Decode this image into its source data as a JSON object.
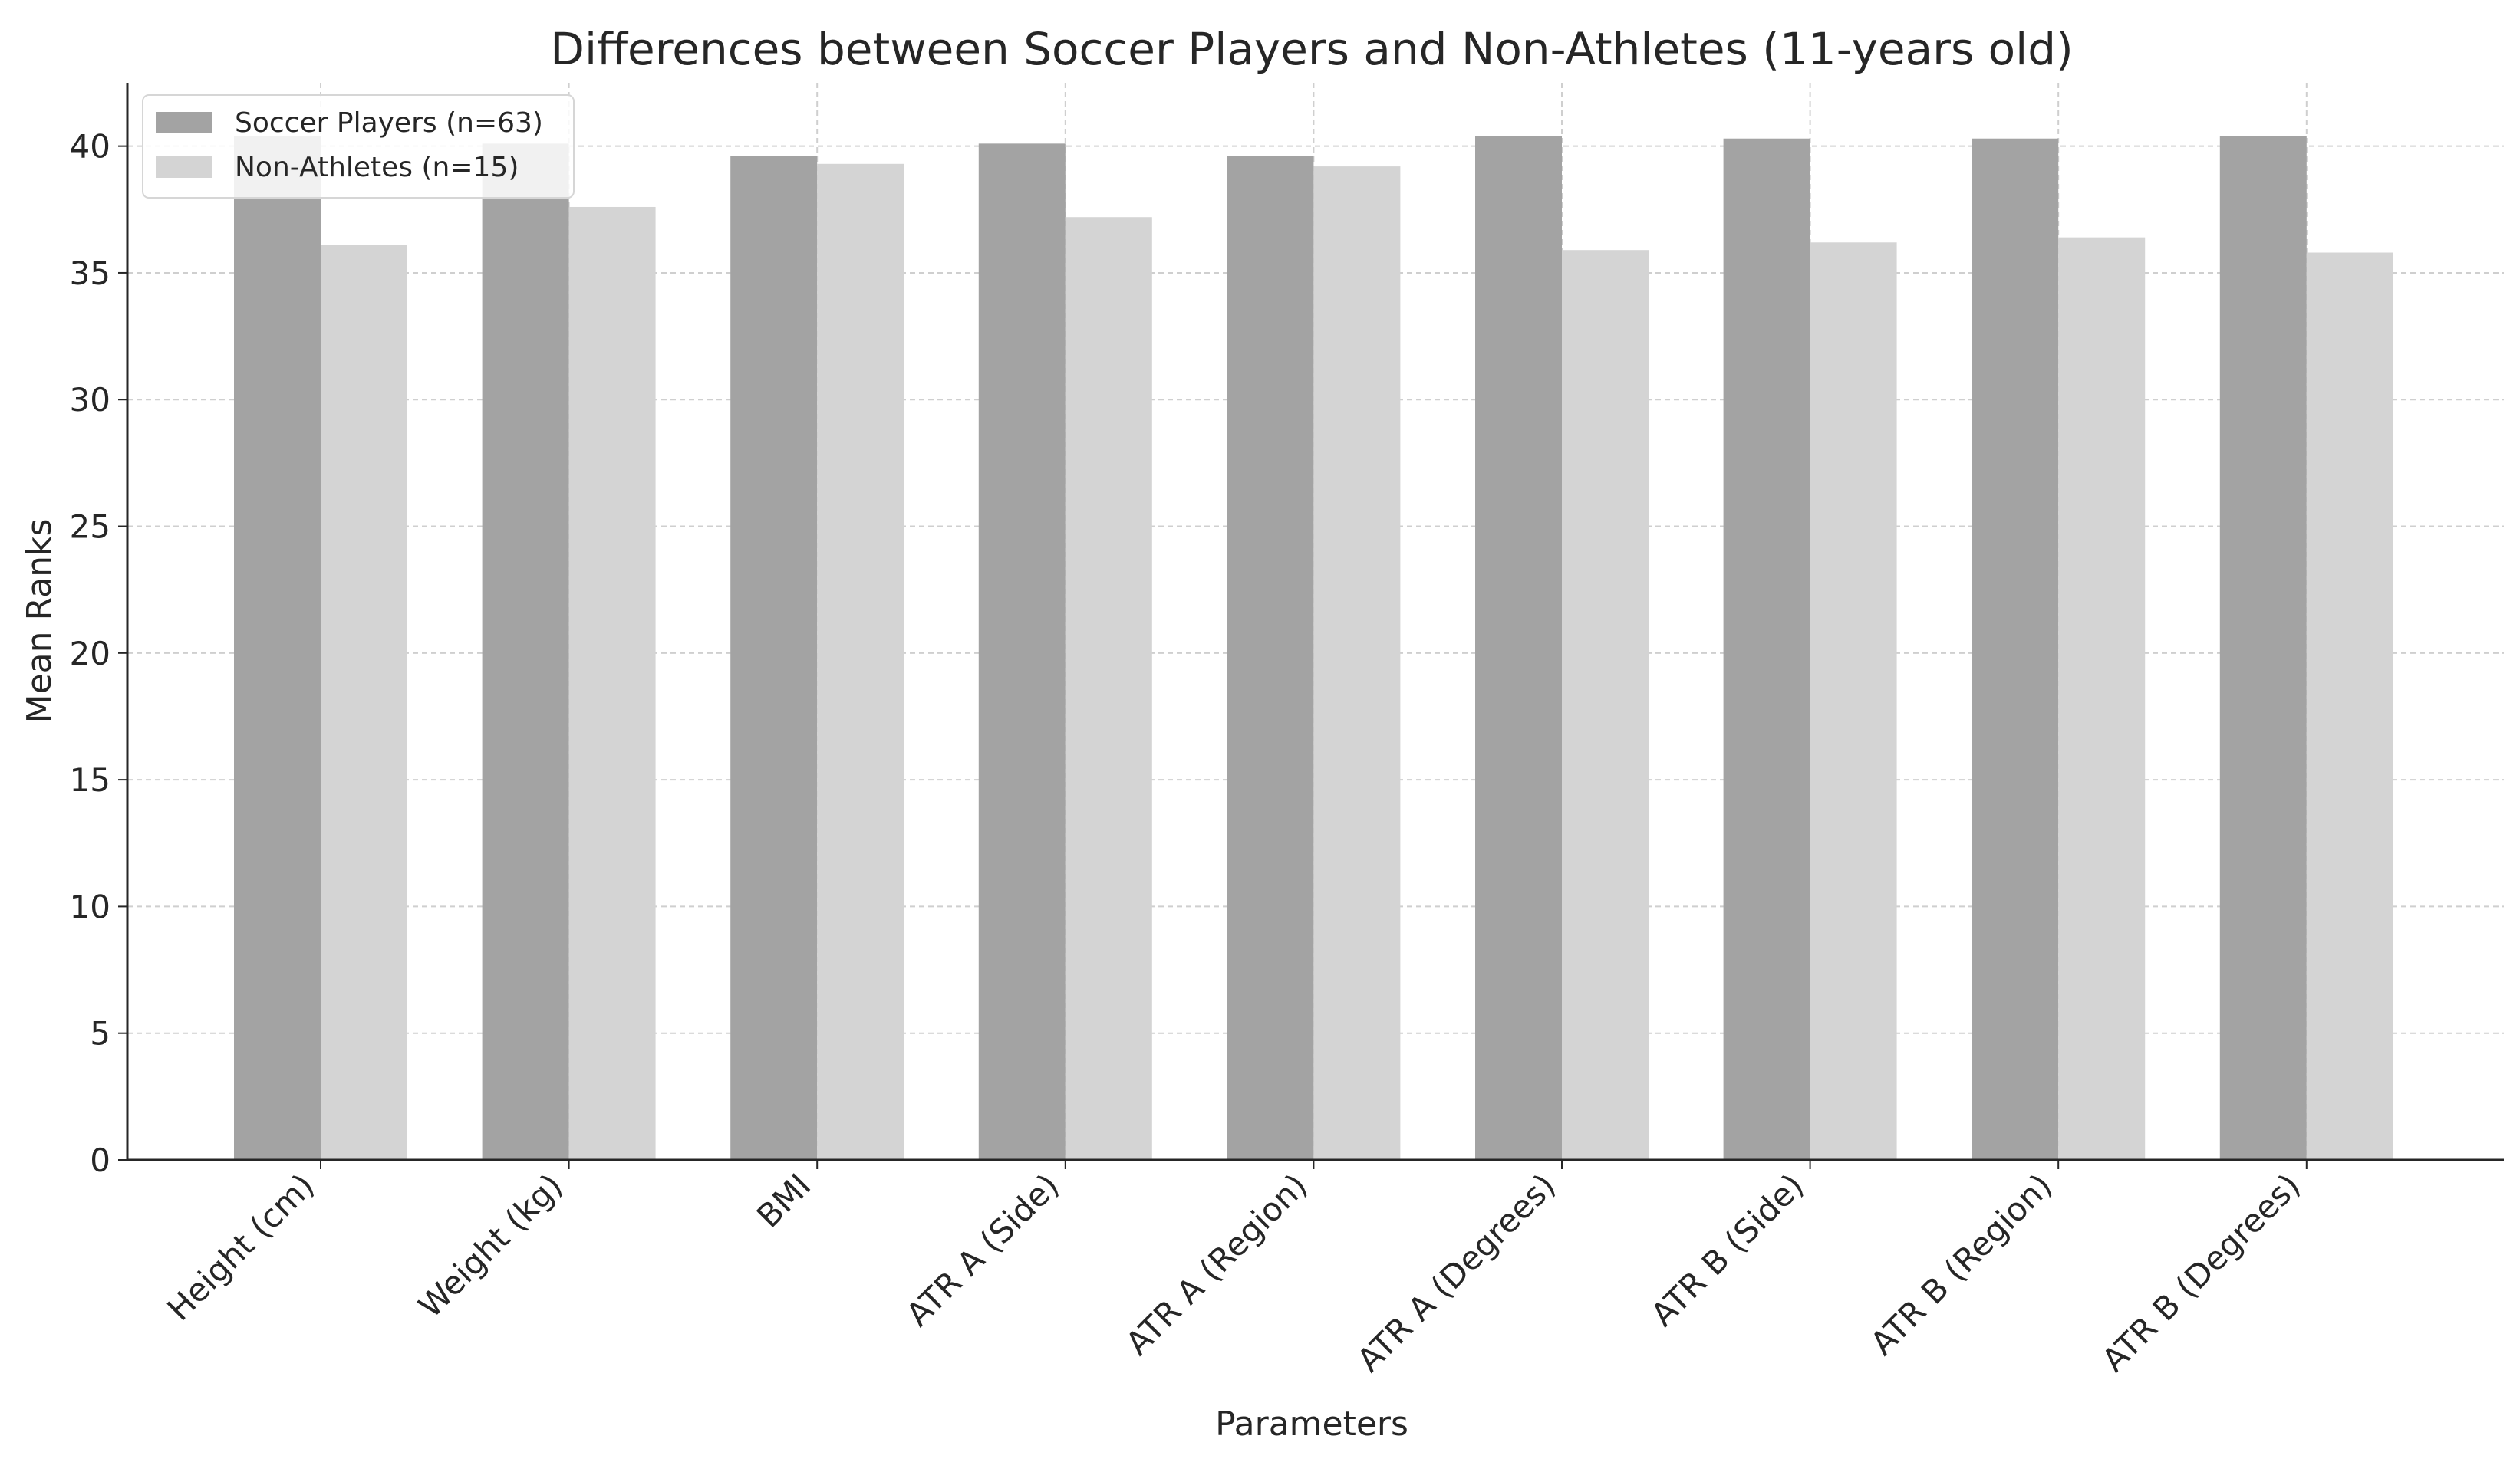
{
  "chart_data": {
    "type": "bar",
    "title": "Differences between Soccer Players and Non-Athletes (11-years old)",
    "xlabel": "Parameters",
    "ylabel": "Mean Ranks",
    "ylim": [
      0,
      42.5
    ],
    "yticks": [
      0,
      5,
      10,
      15,
      20,
      25,
      30,
      35,
      40
    ],
    "grid": true,
    "legend_position": "top-left",
    "categories": [
      "Height (cm)",
      "Weight (kg)",
      "BMI",
      "ATR A (Side)",
      "ATR A (Region)",
      "ATR A (Degrees)",
      "ATR B (Side)",
      "ATR B (Region)",
      "ATR B (Degrees)"
    ],
    "series": [
      {
        "name": "Soccer Players (n=63)",
        "color": "#a3a3a3",
        "values": [
          40.4,
          40.1,
          39.6,
          40.1,
          39.6,
          40.4,
          40.3,
          40.3,
          40.4
        ]
      },
      {
        "name": "Non-Athletes (n=15)",
        "color": "#d4d4d4",
        "values": [
          36.1,
          37.6,
          39.3,
          37.2,
          39.2,
          35.9,
          36.2,
          36.4,
          35.8
        ]
      }
    ]
  }
}
